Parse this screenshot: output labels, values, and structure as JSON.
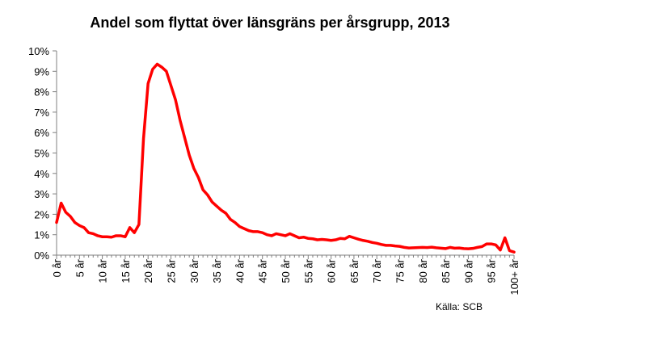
{
  "chart_data": {
    "type": "line",
    "title": "Andel som flyttat över länsgräns per årsgrupp, 2013",
    "xlabel": "",
    "ylabel": "",
    "ylim": [
      0,
      0.1
    ],
    "y_ticks": [
      0,
      0.01,
      0.02,
      0.03,
      0.04,
      0.05,
      0.06,
      0.07,
      0.08,
      0.09,
      0.1
    ],
    "y_tick_labels": [
      "0%",
      "1%",
      "2%",
      "3%",
      "4%",
      "5%",
      "6%",
      "7%",
      "8%",
      "9%",
      "10%"
    ],
    "x_tick_labels": [
      "0 år",
      "5 år",
      "10 år",
      "15 år",
      "20 år",
      "25 år",
      "30 år",
      "35 år",
      "40 år",
      "45 år",
      "50 år",
      "55 år",
      "60 år",
      "65 år",
      "70 år",
      "75 år",
      "80 år",
      "85 år",
      "90 år",
      "95 år",
      "100+ år"
    ],
    "grid": false,
    "legend": "none",
    "series_color": "#ff0000",
    "series": [
      {
        "values": [
          0.016,
          0.0255,
          0.021,
          0.019,
          0.016,
          0.0145,
          0.0135,
          0.011,
          0.0105,
          0.0095,
          0.009,
          0.009,
          0.0088,
          0.0095,
          0.0095,
          0.009,
          0.0135,
          0.011,
          0.015,
          0.057,
          0.084,
          0.091,
          0.0935,
          0.092,
          0.09,
          0.083,
          0.076,
          0.066,
          0.0575,
          0.049,
          0.0425,
          0.038,
          0.032,
          0.0295,
          0.026,
          0.024,
          0.022,
          0.0205,
          0.0175,
          0.016,
          0.014,
          0.013,
          0.012,
          0.0115,
          0.0115,
          0.011,
          0.01,
          0.0095,
          0.0105,
          0.01,
          0.0095,
          0.0105,
          0.0095,
          0.0085,
          0.0088,
          0.0082,
          0.008,
          0.0075,
          0.0077,
          0.0075,
          0.0072,
          0.0075,
          0.0082,
          0.008,
          0.0092,
          0.0085,
          0.0078,
          0.0072,
          0.0068,
          0.0062,
          0.0058,
          0.0052,
          0.0048,
          0.0048,
          0.0045,
          0.0043,
          0.0038,
          0.0035,
          0.0036,
          0.0037,
          0.0038,
          0.0037,
          0.0039,
          0.0036,
          0.0034,
          0.0032,
          0.0038,
          0.0034,
          0.0035,
          0.0032,
          0.0031,
          0.0033,
          0.0038,
          0.0042,
          0.0055,
          0.0055,
          0.005,
          0.0025,
          0.0085,
          0.0022,
          0.0015
        ]
      }
    ],
    "source_note": "Källa: SCB"
  }
}
